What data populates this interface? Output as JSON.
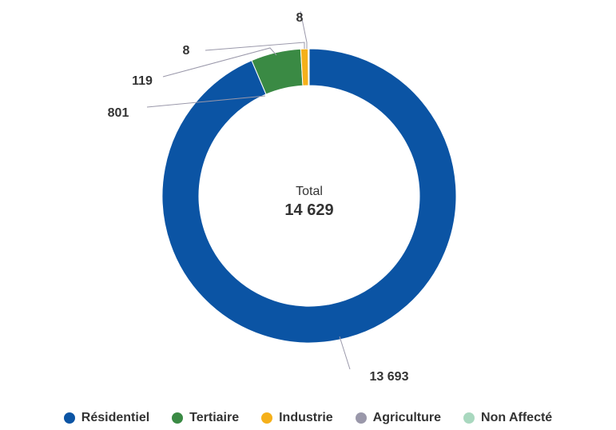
{
  "chart_data": {
    "type": "pie",
    "variant": "donut",
    "center_caption": "Total",
    "center_total": "14 629",
    "slices": [
      {
        "name": "Résidentiel",
        "value": 13693,
        "label": "13 693",
        "color": "#0b54a4"
      },
      {
        "name": "Tertiaire",
        "value": 801,
        "label": "801",
        "color": "#3a8a44"
      },
      {
        "name": "Industrie",
        "value": 119,
        "label": "119",
        "color": "#f5b01a"
      },
      {
        "name": "Agriculture",
        "value": 8,
        "label": "8",
        "color": "#9a98aa"
      },
      {
        "name": "Non Affecté",
        "value": 8,
        "label": "8",
        "color": "#a9d8bf"
      }
    ],
    "legend_position": "bottom"
  }
}
